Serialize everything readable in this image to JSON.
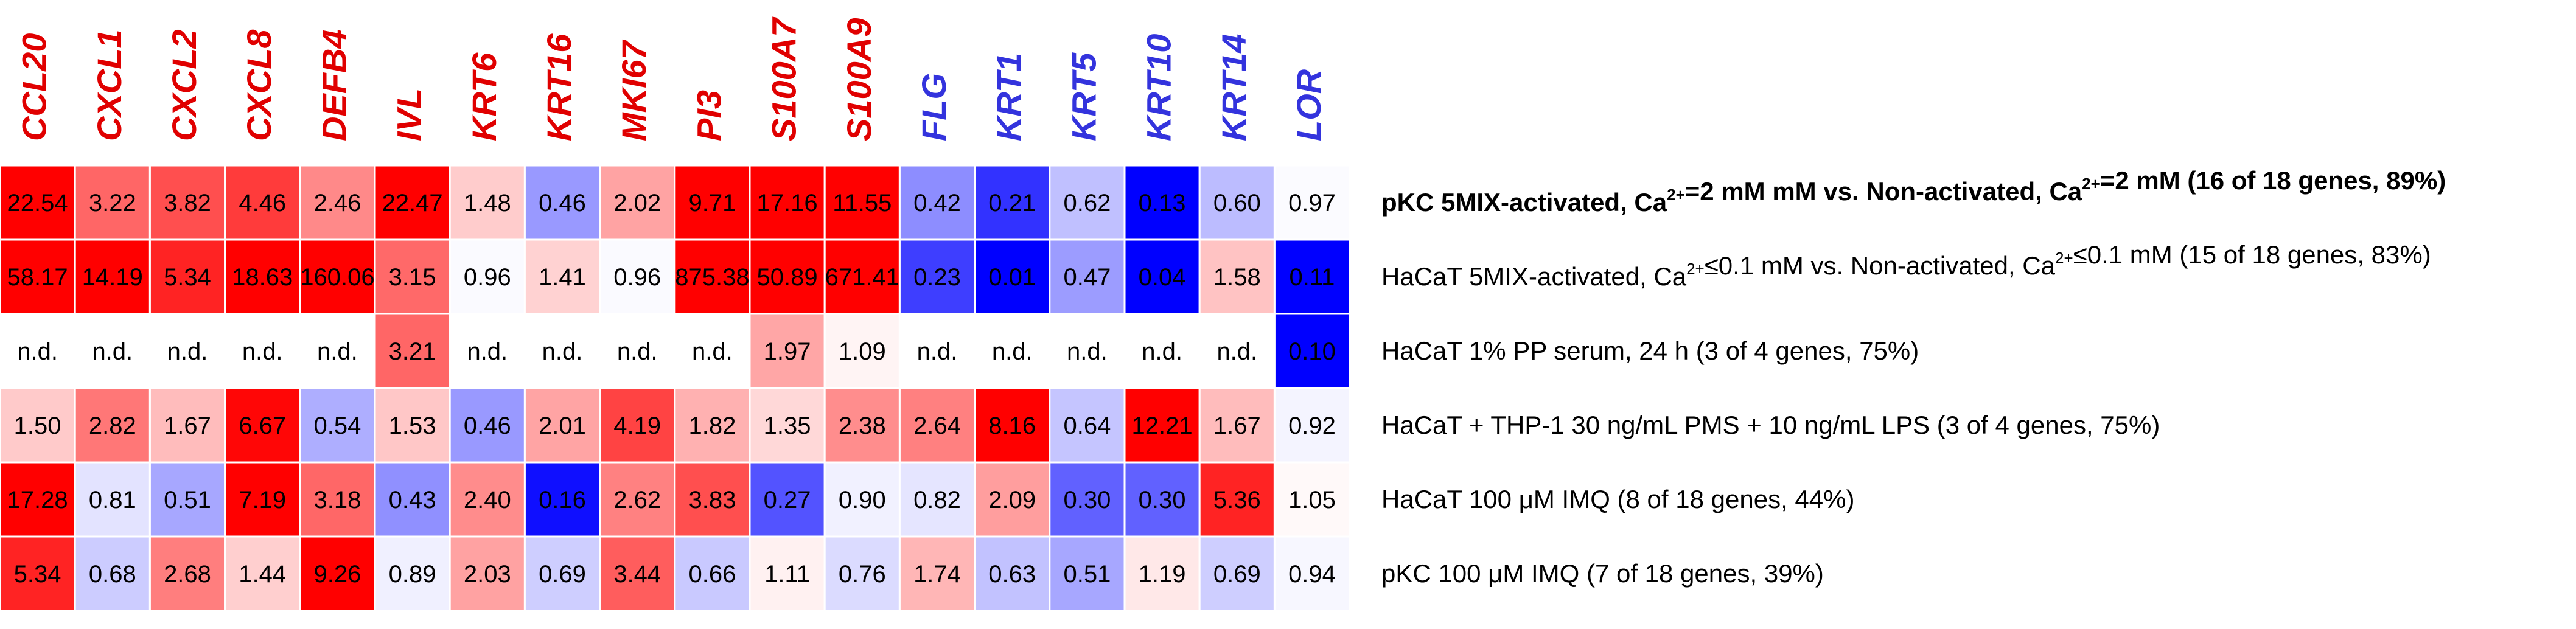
{
  "chart_data": {
    "type": "heatmap",
    "title": "",
    "columns": [
      {
        "gene": "CCL20",
        "group": "up"
      },
      {
        "gene": "CXCL1",
        "group": "up"
      },
      {
        "gene": "CXCL2",
        "group": "up"
      },
      {
        "gene": "CXCL8",
        "group": "up"
      },
      {
        "gene": "DEFB4",
        "group": "up"
      },
      {
        "gene": "IVL",
        "group": "up"
      },
      {
        "gene": "KRT6",
        "group": "up"
      },
      {
        "gene": "KRT16",
        "group": "up"
      },
      {
        "gene": "MKI67",
        "group": "up"
      },
      {
        "gene": "PI3",
        "group": "up"
      },
      {
        "gene": "S100A7",
        "group": "up"
      },
      {
        "gene": "S100A9",
        "group": "up"
      },
      {
        "gene": "FLG",
        "group": "down"
      },
      {
        "gene": "KRT1",
        "group": "down"
      },
      {
        "gene": "KRT5",
        "group": "down"
      },
      {
        "gene": "KRT10",
        "group": "down"
      },
      {
        "gene": "KRT14",
        "group": "down"
      },
      {
        "gene": "LOR",
        "group": "down"
      }
    ],
    "rows": [
      {
        "label": {
          "pre": "pKC 5MIX-activated, Ca",
          "sup1": "2+",
          "mid": "=2 mM mM vs. Non-activated, Ca",
          "sup2": "2+",
          "post": "=2 mM (16 of 18 genes, 89%)"
        },
        "bold": true,
        "values": [
          "22.54",
          "3.22",
          "3.82",
          "4.46",
          "2.46",
          "22.47",
          "1.48",
          "0.46",
          "2.02",
          "9.71",
          "17.16",
          "11.55",
          "0.42",
          "0.21",
          "0.62",
          "0.13",
          "0.60",
          "0.97"
        ]
      },
      {
        "label": {
          "pre": "HaCaT 5MIX-activated, Ca",
          "sup1": "2+",
          "mid": "≤0.1 mM vs. Non-activated, Ca",
          "sup2": "2+",
          "post": "≤0.1 mM  (15 of 18 genes, 83%)"
        },
        "bold": false,
        "values": [
          "58.17",
          "14.19",
          "5.34",
          "18.63",
          "160.06",
          "3.15",
          "0.96",
          "1.41",
          "0.96",
          "875.38",
          "50.89",
          "671.41",
          "0.23",
          "0.01",
          "0.47",
          "0.04",
          "1.58",
          "0.11"
        ]
      },
      {
        "label": {
          "pre": "HaCaT 1% PP serum, 24 h (3 of 4 genes, 75%)",
          "sup1": "",
          "mid": "",
          "sup2": "",
          "post": ""
        },
        "bold": false,
        "values": [
          "n.d.",
          "n.d.",
          "n.d.",
          "n.d.",
          "n.d.",
          "3.21",
          "n.d.",
          "n.d.",
          "n.d.",
          "n.d.",
          "1.97",
          "1.09",
          "n.d.",
          "n.d.",
          "n.d.",
          "n.d.",
          "n.d.",
          "0.10"
        ]
      },
      {
        "label": {
          "pre": "HaCaT + THP-1 30 ng/mL PMS + 10 ng/mL LPS (3 of 4 genes, 75%)",
          "sup1": "",
          "mid": "",
          "sup2": "",
          "post": ""
        },
        "bold": false,
        "values": [
          "1.50",
          "2.82",
          "1.67",
          "6.67",
          "0.54",
          "1.53",
          "0.46",
          "2.01",
          "4.19",
          "1.82",
          "1.35",
          "2.38",
          "2.64",
          "8.16",
          "0.64",
          "12.21",
          "1.67",
          "0.92"
        ]
      },
      {
        "label": {
          "pre": "HaCaT 100 μM IMQ (8 of 18 genes, 44%)",
          "sup1": "",
          "mid": "",
          "sup2": "",
          "post": ""
        },
        "bold": false,
        "values": [
          "17.28",
          "0.81",
          "0.51",
          "7.19",
          "3.18",
          "0.43",
          "2.40",
          "0.16",
          "2.62",
          "3.83",
          "0.27",
          "0.90",
          "0.82",
          "2.09",
          "0.30",
          "0.30",
          "5.36",
          "1.05"
        ]
      },
      {
        "label": {
          "pre": "pKC 100 μM IMQ (7 of 18 genes, 39%)",
          "sup1": "",
          "mid": "",
          "sup2": "",
          "post": ""
        },
        "bold": false,
        "values": [
          "5.34",
          "0.68",
          "2.68",
          "1.44",
          "9.26",
          "0.89",
          "2.03",
          "0.69",
          "3.44",
          "0.66",
          "1.11",
          "0.76",
          "1.74",
          "0.63",
          "0.51",
          "1.19",
          "0.69",
          "0.94"
        ]
      }
    ],
    "colors": {
      "high": "#ff0000",
      "low": "#0000ff",
      "neutral": "#ffffff",
      "nd": "#ffffff",
      "up_label": "#e00000",
      "down_label": "#3333dd"
    },
    "color_scale": {
      "type": "log2 fold change",
      "saturation_fold": 7
    }
  }
}
